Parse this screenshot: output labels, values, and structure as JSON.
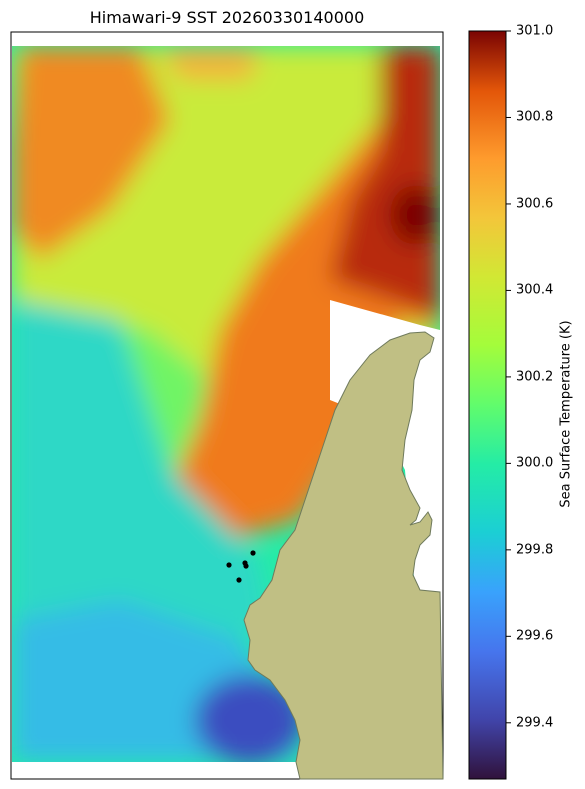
{
  "chart_data": {
    "type": "heatmap",
    "title": "Himawari-9 SST 20260330140000",
    "colorbar": {
      "label": "Sea Surface Temperature (K)",
      "colormap": "turbo",
      "vmin": 299.27,
      "vmax": 301.0,
      "ticks": [
        "299.4",
        "299.6",
        "299.8",
        "300.0",
        "300.2",
        "300.4",
        "300.6",
        "300.8",
        "301.0"
      ]
    },
    "regions": [
      {
        "name": "north-west warm band",
        "value": 300.6
      },
      {
        "name": "north-east maximum",
        "value": 300.95
      },
      {
        "name": "central warm tongue",
        "value": 300.6
      },
      {
        "name": "western cool water",
        "value": 299.8
      },
      {
        "name": "south-east minimum",
        "value": 299.4
      }
    ],
    "markers": 5,
    "land_color": "#c0bf84",
    "missing_color": "#ffffff"
  }
}
